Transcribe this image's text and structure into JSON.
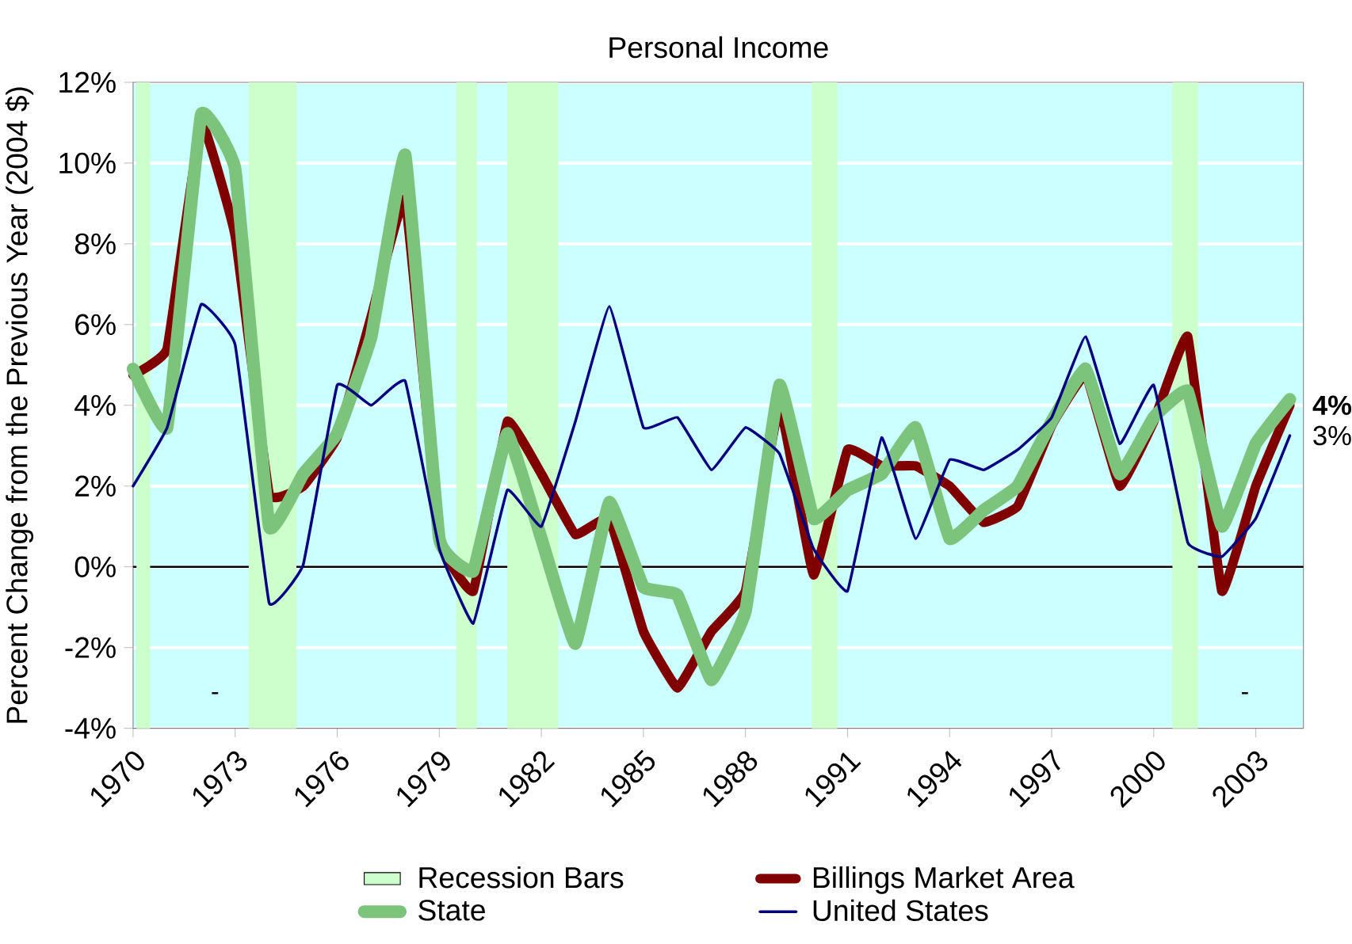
{
  "chart_data": {
    "type": "line",
    "title": "Personal Income",
    "ylabel": "Percent Change from the Previous Year (2004 $)",
    "x": [
      1970,
      1971,
      1972,
      1973,
      1974,
      1975,
      1976,
      1977,
      1978,
      1979,
      1980,
      1981,
      1982,
      1983,
      1984,
      1985,
      1986,
      1987,
      1988,
      1989,
      1990,
      1991,
      1992,
      1993,
      1994,
      1995,
      1996,
      1997,
      1998,
      1999,
      2000,
      2001,
      2002,
      2003,
      2004
    ],
    "series": [
      {
        "name": "Billings Market Area",
        "color": "#800000",
        "values": [
          4.75,
          5.4,
          11.0,
          8.2,
          1.8,
          2.0,
          3.2,
          6.2,
          9.1,
          0.7,
          -0.6,
          3.6,
          2.3,
          0.8,
          1.2,
          -1.6,
          -3.0,
          -1.6,
          -0.6,
          4.0,
          -0.2,
          2.9,
          2.5,
          2.5,
          2.0,
          1.1,
          1.5,
          3.5,
          4.75,
          2.0,
          3.6,
          5.7,
          -0.6,
          2.0,
          4.0
        ],
        "value_labels": [
          null,
          null,
          null,
          null,
          null,
          null,
          null,
          null,
          null,
          null,
          null,
          null,
          null,
          null,
          null,
          null,
          null,
          null,
          null,
          null,
          null,
          null,
          null,
          null,
          null,
          null,
          null,
          null,
          null,
          null,
          null,
          null,
          null,
          null,
          "**4%**"
        ]
      },
      {
        "name": "State",
        "color": "#7cc47c",
        "values": [
          4.9,
          3.45,
          11.2,
          9.85,
          1.0,
          2.3,
          3.3,
          5.7,
          10.2,
          0.7,
          -0.1,
          3.3,
          0.7,
          -1.9,
          1.6,
          -0.5,
          -0.7,
          -2.8,
          -1.1,
          4.5,
          1.2,
          1.9,
          2.3,
          3.45,
          0.7,
          1.4,
          2.0,
          3.6,
          4.9,
          2.3,
          3.7,
          4.35,
          1.0,
          3.05,
          4.15
        ]
      },
      {
        "name": "United States",
        "color": "#000080",
        "values": [
          2.0,
          3.45,
          6.5,
          5.5,
          -0.9,
          0.05,
          4.5,
          4.0,
          4.6,
          0.45,
          -1.4,
          1.9,
          1.0,
          3.6,
          6.45,
          3.45,
          3.7,
          2.4,
          3.45,
          2.8,
          0.45,
          -0.6,
          3.2,
          0.7,
          2.65,
          2.4,
          2.9,
          3.7,
          5.7,
          3.05,
          4.5,
          0.6,
          0.25,
          1.2,
          3.25
        ],
        "value_labels": [
          null,
          null,
          null,
          null,
          null,
          null,
          null,
          null,
          null,
          null,
          null,
          null,
          null,
          null,
          null,
          null,
          null,
          null,
          null,
          null,
          null,
          null,
          null,
          null,
          null,
          null,
          null,
          null,
          null,
          null,
          null,
          null,
          null,
          null,
          "3%"
        ]
      }
    ],
    "bands": [
      {
        "axis": "x",
        "from": 1970.1,
        "to": 1970.5,
        "label": "Recession Bars",
        "color": "#ccffcc"
      },
      {
        "axis": "x",
        "from": 1973.4,
        "to": 1974.8,
        "color": "#ccffcc"
      },
      {
        "axis": "x",
        "from": 1979.5,
        "to": 1980.1,
        "color": "#ccffcc"
      },
      {
        "axis": "x",
        "from": 1981.0,
        "to": 1982.5,
        "color": "#ccffcc"
      },
      {
        "axis": "x",
        "from": 1989.95,
        "to": 1990.7,
        "color": "#ccffcc"
      },
      {
        "axis": "x",
        "from": 2000.55,
        "to": 2001.3,
        "color": "#ccffcc"
      }
    ],
    "annotations": [
      "-",
      "-"
    ],
    "xlim": [
      1970,
      2004.4
    ],
    "xticks": [
      1970,
      1973,
      1976,
      1979,
      1982,
      1985,
      1988,
      1991,
      1994,
      1997,
      2000,
      2003
    ],
    "ylim": [
      -4,
      12
    ],
    "yticks": [
      {
        "value": -4,
        "label": "-4%"
      },
      {
        "value": -2,
        "label": "-2%"
      },
      {
        "value": 0,
        "label": "0%"
      },
      {
        "value": 2,
        "label": "2%"
      },
      {
        "value": 4,
        "label": "4%"
      },
      {
        "value": 6,
        "label": "6%"
      },
      {
        "value": 8,
        "label": "8%"
      },
      {
        "value": 10,
        "label": "10%"
      },
      {
        "value": 12,
        "label": "12%"
      }
    ],
    "grid": "y",
    "legend": "bottom"
  }
}
